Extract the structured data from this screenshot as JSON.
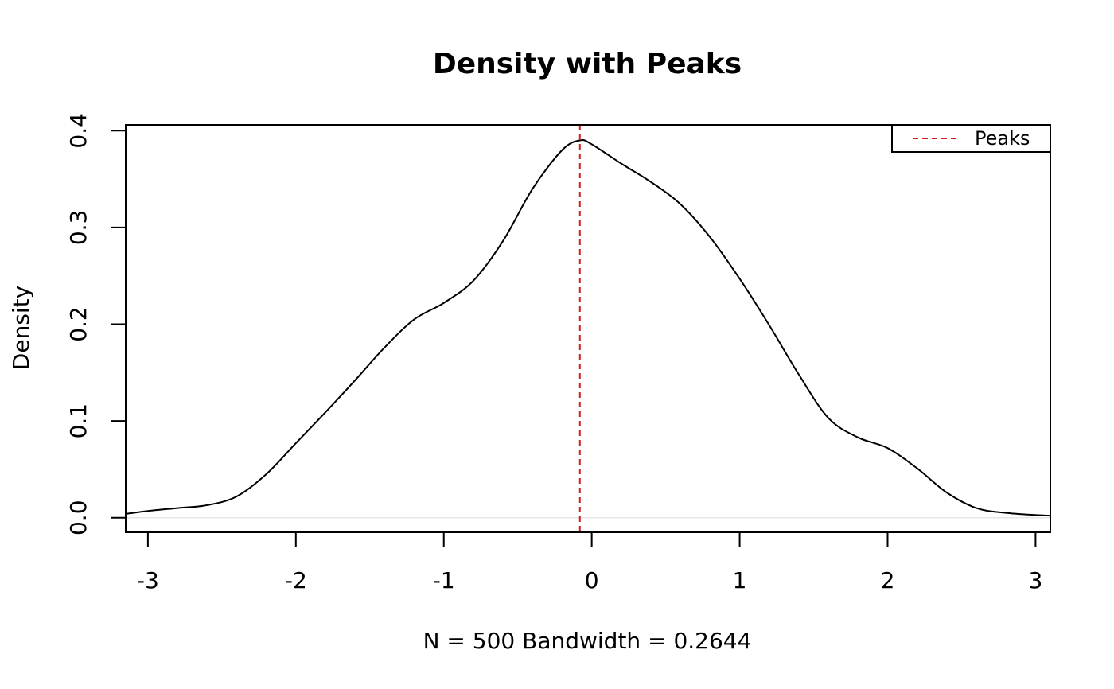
{
  "chart_data": {
    "type": "line",
    "title": "Density with Peaks",
    "xlabel": "N = 500   Bandwidth = 0.2644",
    "ylabel": "Density",
    "xlim": [
      -3.15,
      3.1
    ],
    "ylim": [
      -0.015,
      0.406
    ],
    "x_ticks": [
      -3,
      -2,
      -1,
      0,
      1,
      2,
      3
    ],
    "x_tick_labels": [
      "-3",
      "-2",
      "-1",
      "0",
      "1",
      "2",
      "3"
    ],
    "y_ticks": [
      0.0,
      0.1,
      0.2,
      0.3,
      0.4
    ],
    "y_tick_labels": [
      "0.0",
      "0.1",
      "0.2",
      "0.3",
      "0.4"
    ],
    "grid": false,
    "baseline": {
      "y": 0,
      "color": "#e6e6e6"
    },
    "series": [
      {
        "color": "#000000",
        "x": [
          -3.15,
          -3.0,
          -2.8,
          -2.6,
          -2.4,
          -2.2,
          -2.0,
          -1.8,
          -1.6,
          -1.4,
          -1.2,
          -1.0,
          -0.8,
          -0.6,
          -0.4,
          -0.2,
          -0.08,
          0.0,
          0.2,
          0.4,
          0.6,
          0.8,
          1.0,
          1.2,
          1.4,
          1.6,
          1.8,
          2.0,
          2.2,
          2.4,
          2.6,
          2.8,
          3.1
        ],
        "y": [
          0.004,
          0.007,
          0.01,
          0.013,
          0.022,
          0.045,
          0.077,
          0.109,
          0.142,
          0.176,
          0.205,
          0.222,
          0.245,
          0.286,
          0.34,
          0.38,
          0.39,
          0.386,
          0.366,
          0.347,
          0.324,
          0.29,
          0.247,
          0.199,
          0.148,
          0.103,
          0.083,
          0.072,
          0.051,
          0.026,
          0.01,
          0.005,
          0.002
        ]
      }
    ],
    "peaks": {
      "x": [
        -0.08
      ],
      "color": "#cc2222",
      "style": "dashed"
    },
    "legend": {
      "position": "top-right",
      "entries": [
        {
          "label": "Peaks",
          "color": "#cc2222",
          "style": "dashed"
        }
      ]
    }
  }
}
